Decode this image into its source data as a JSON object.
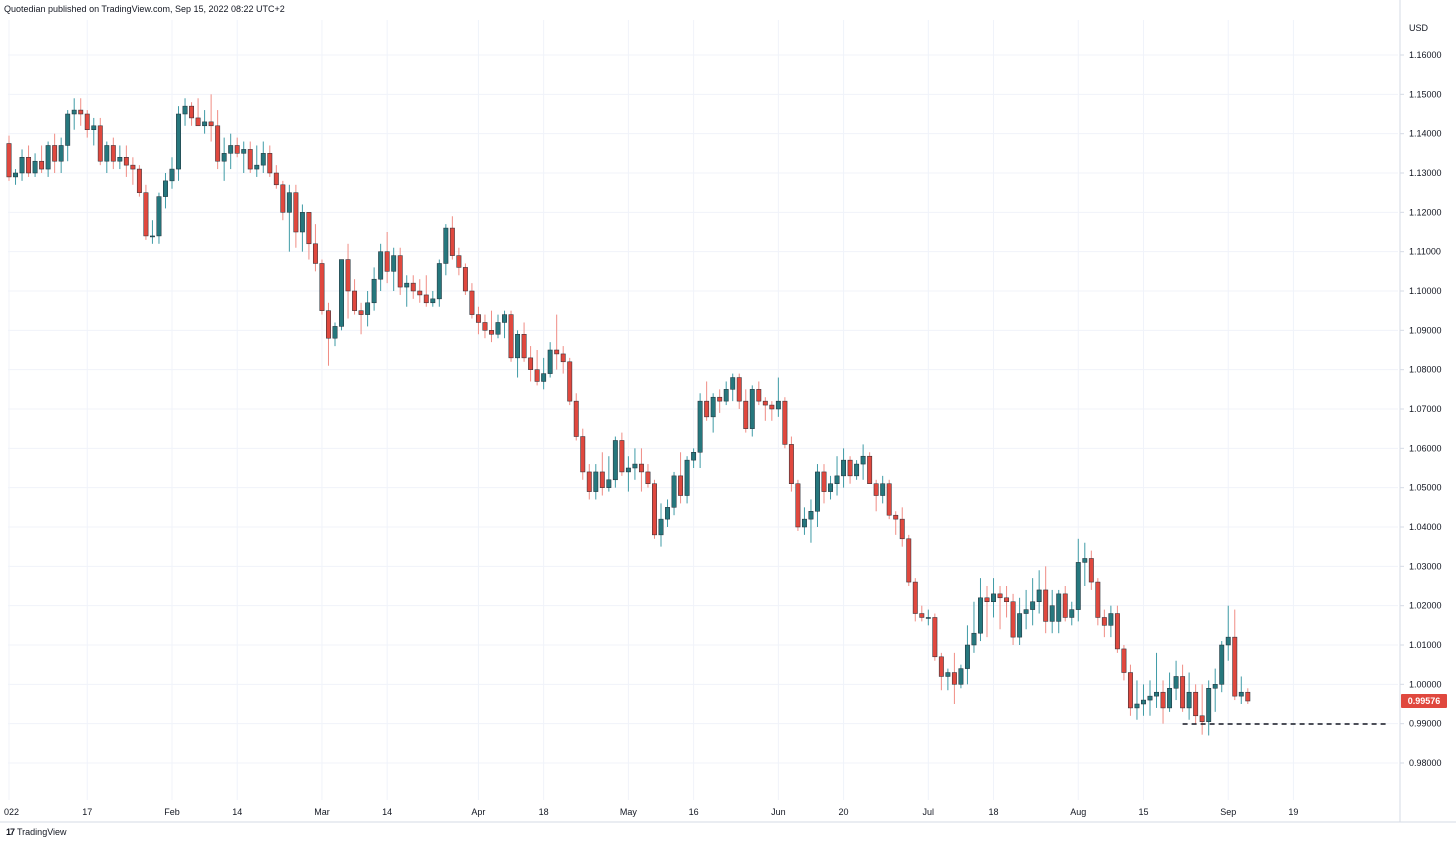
{
  "header": {
    "published_text": "Quotedian published on TradingView.com, Sep 15, 2022 08:22 UTC+2"
  },
  "brand": {
    "logo_glyph": "17",
    "name": "TradingView"
  },
  "colors": {
    "up": "#26777d",
    "down": "#e0483e",
    "up_wick": "#3f9ba6",
    "down_wick": "#f08c84",
    "price_tag_bg": "#e0483e",
    "grid": "#f0f3fa",
    "axis_line": "#d6dbe5",
    "support_line": "#131722"
  },
  "chart_data": {
    "type": "candlestick",
    "currency": "USD",
    "ylim": [
      0.97,
      1.165
    ],
    "y_ticks": [
      "1.16000",
      "1.15000",
      "1.14000",
      "1.13000",
      "1.12000",
      "1.11000",
      "1.10000",
      "1.09000",
      "1.08000",
      "1.07000",
      "1.06000",
      "1.05000",
      "1.04000",
      "1.03000",
      "1.02000",
      "1.01000",
      "1.00000",
      "0.99000",
      "0.98000"
    ],
    "x_tick_labels": [
      "022",
      "17",
      "Feb",
      "14",
      "Mar",
      "14",
      "Apr",
      "18",
      "May",
      "16",
      "Jun",
      "20",
      "Jul",
      "18",
      "Aug",
      "15",
      "Sep",
      "19"
    ],
    "x_tick_index": [
      0,
      12,
      25,
      35,
      48,
      58,
      72,
      82,
      95,
      105,
      118,
      128,
      141,
      151,
      164,
      174,
      187,
      197
    ],
    "last_price": 0.99576,
    "last_price_label": "0.99576",
    "support_level": 0.9899,
    "support_start_index": 180,
    "support_end_index": 205,
    "candles": [
      [
        1.1375,
        1.1395,
        1.128,
        1.129
      ],
      [
        1.129,
        1.131,
        1.127,
        1.13
      ],
      [
        1.13,
        1.136,
        1.128,
        1.134
      ],
      [
        1.134,
        1.137,
        1.129,
        1.13
      ],
      [
        1.13,
        1.135,
        1.129,
        1.133
      ],
      [
        1.133,
        1.137,
        1.13,
        1.131
      ],
      [
        1.131,
        1.138,
        1.129,
        1.137
      ],
      [
        1.137,
        1.14,
        1.13,
        1.133
      ],
      [
        1.133,
        1.139,
        1.13,
        1.137
      ],
      [
        1.137,
        1.146,
        1.133,
        1.145
      ],
      [
        1.145,
        1.149,
        1.141,
        1.146
      ],
      [
        1.146,
        1.149,
        1.142,
        1.145
      ],
      [
        1.145,
        1.146,
        1.139,
        1.141
      ],
      [
        1.141,
        1.144,
        1.137,
        1.142
      ],
      [
        1.142,
        1.144,
        1.132,
        1.133
      ],
      [
        1.133,
        1.138,
        1.13,
        1.137
      ],
      [
        1.137,
        1.139,
        1.131,
        1.133
      ],
      [
        1.133,
        1.137,
        1.131,
        1.134
      ],
      [
        1.134,
        1.137,
        1.129,
        1.132
      ],
      [
        1.132,
        1.134,
        1.127,
        1.131
      ],
      [
        1.131,
        1.132,
        1.124,
        1.125
      ],
      [
        1.125,
        1.127,
        1.113,
        1.114
      ],
      [
        1.114,
        1.118,
        1.112,
        1.114
      ],
      [
        1.114,
        1.125,
        1.112,
        1.124
      ],
      [
        1.124,
        1.13,
        1.121,
        1.128
      ],
      [
        1.128,
        1.134,
        1.126,
        1.131
      ],
      [
        1.131,
        1.147,
        1.128,
        1.145
      ],
      [
        1.145,
        1.149,
        1.142,
        1.147
      ],
      [
        1.147,
        1.148,
        1.142,
        1.144
      ],
      [
        1.144,
        1.149,
        1.142,
        1.142
      ],
      [
        1.142,
        1.146,
        1.14,
        1.143
      ],
      [
        1.143,
        1.15,
        1.138,
        1.142
      ],
      [
        1.142,
        1.146,
        1.131,
        1.133
      ],
      [
        1.133,
        1.139,
        1.128,
        1.135
      ],
      [
        1.135,
        1.14,
        1.131,
        1.137
      ],
      [
        1.137,
        1.139,
        1.134,
        1.135
      ],
      [
        1.135,
        1.138,
        1.13,
        1.136
      ],
      [
        1.136,
        1.138,
        1.13,
        1.131
      ],
      [
        1.131,
        1.137,
        1.129,
        1.132
      ],
      [
        1.132,
        1.138,
        1.13,
        1.135
      ],
      [
        1.135,
        1.137,
        1.129,
        1.13
      ],
      [
        1.13,
        1.132,
        1.126,
        1.127
      ],
      [
        1.127,
        1.128,
        1.118,
        1.12
      ],
      [
        1.12,
        1.127,
        1.11,
        1.125
      ],
      [
        1.125,
        1.127,
        1.111,
        1.115
      ],
      [
        1.115,
        1.122,
        1.11,
        1.12
      ],
      [
        1.12,
        1.12,
        1.108,
        1.112
      ],
      [
        1.112,
        1.117,
        1.105,
        1.107
      ],
      [
        1.107,
        1.108,
        1.094,
        1.095
      ],
      [
        1.095,
        1.097,
        1.081,
        1.088
      ],
      [
        1.088,
        1.092,
        1.086,
        1.091
      ],
      [
        1.091,
        1.108,
        1.09,
        1.108
      ],
      [
        1.108,
        1.112,
        1.093,
        1.1
      ],
      [
        1.1,
        1.103,
        1.094,
        1.095
      ],
      [
        1.095,
        1.097,
        1.089,
        1.094
      ],
      [
        1.094,
        1.1,
        1.091,
        1.097
      ],
      [
        1.097,
        1.106,
        1.095,
        1.103
      ],
      [
        1.103,
        1.112,
        1.1,
        1.11
      ],
      [
        1.11,
        1.115,
        1.102,
        1.105
      ],
      [
        1.105,
        1.111,
        1.1,
        1.109
      ],
      [
        1.109,
        1.111,
        1.099,
        1.101
      ],
      [
        1.101,
        1.104,
        1.096,
        1.102
      ],
      [
        1.102,
        1.104,
        1.098,
        1.1
      ],
      [
        1.1,
        1.103,
        1.097,
        1.099
      ],
      [
        1.099,
        1.104,
        1.096,
        1.097
      ],
      [
        1.097,
        1.1,
        1.096,
        1.098
      ],
      [
        1.098,
        1.108,
        1.096,
        1.107
      ],
      [
        1.107,
        1.117,
        1.104,
        1.116
      ],
      [
        1.116,
        1.119,
        1.108,
        1.109
      ],
      [
        1.109,
        1.111,
        1.104,
        1.106
      ],
      [
        1.106,
        1.107,
        1.099,
        1.1
      ],
      [
        1.1,
        1.102,
        1.093,
        1.094
      ],
      [
        1.094,
        1.096,
        1.089,
        1.092
      ],
      [
        1.092,
        1.094,
        1.088,
        1.09
      ],
      [
        1.09,
        1.095,
        1.087,
        1.089
      ],
      [
        1.089,
        1.094,
        1.088,
        1.092
      ],
      [
        1.092,
        1.095,
        1.088,
        1.094
      ],
      [
        1.094,
        1.095,
        1.082,
        1.083
      ],
      [
        1.083,
        1.09,
        1.078,
        1.089
      ],
      [
        1.089,
        1.092,
        1.082,
        1.083
      ],
      [
        1.083,
        1.086,
        1.077,
        1.08
      ],
      [
        1.08,
        1.085,
        1.076,
        1.077
      ],
      [
        1.077,
        1.083,
        1.075,
        1.079
      ],
      [
        1.079,
        1.087,
        1.078,
        1.085
      ],
      [
        1.085,
        1.094,
        1.08,
        1.084
      ],
      [
        1.084,
        1.086,
        1.079,
        1.082
      ],
      [
        1.082,
        1.083,
        1.071,
        1.072
      ],
      [
        1.072,
        1.074,
        1.062,
        1.063
      ],
      [
        1.063,
        1.065,
        1.052,
        1.054
      ],
      [
        1.054,
        1.056,
        1.047,
        1.049
      ],
      [
        1.049,
        1.056,
        1.047,
        1.054
      ],
      [
        1.054,
        1.059,
        1.048,
        1.05
      ],
      [
        1.05,
        1.058,
        1.049,
        1.052
      ],
      [
        1.052,
        1.063,
        1.05,
        1.062
      ],
      [
        1.062,
        1.064,
        1.053,
        1.054
      ],
      [
        1.054,
        1.058,
        1.049,
        1.055
      ],
      [
        1.055,
        1.06,
        1.052,
        1.056
      ],
      [
        1.056,
        1.06,
        1.049,
        1.054
      ],
      [
        1.054,
        1.056,
        1.05,
        1.051
      ],
      [
        1.051,
        1.052,
        1.037,
        1.038
      ],
      [
        1.038,
        1.046,
        1.035,
        1.042
      ],
      [
        1.042,
        1.047,
        1.04,
        1.045
      ],
      [
        1.045,
        1.054,
        1.043,
        1.053
      ],
      [
        1.053,
        1.059,
        1.046,
        1.048
      ],
      [
        1.048,
        1.058,
        1.046,
        1.057
      ],
      [
        1.057,
        1.06,
        1.055,
        1.059
      ],
      [
        1.059,
        1.074,
        1.055,
        1.072
      ],
      [
        1.072,
        1.077,
        1.067,
        1.068
      ],
      [
        1.068,
        1.074,
        1.064,
        1.073
      ],
      [
        1.073,
        1.075,
        1.069,
        1.072
      ],
      [
        1.072,
        1.077,
        1.071,
        1.075
      ],
      [
        1.075,
        1.079,
        1.072,
        1.078
      ],
      [
        1.078,
        1.079,
        1.07,
        1.072
      ],
      [
        1.072,
        1.075,
        1.064,
        1.065
      ],
      [
        1.065,
        1.076,
        1.063,
        1.075
      ],
      [
        1.075,
        1.077,
        1.071,
        1.072
      ],
      [
        1.072,
        1.073,
        1.067,
        1.071
      ],
      [
        1.071,
        1.072,
        1.067,
        1.07
      ],
      [
        1.07,
        1.078,
        1.068,
        1.072
      ],
      [
        1.072,
        1.073,
        1.06,
        1.061
      ],
      [
        1.061,
        1.063,
        1.049,
        1.051
      ],
      [
        1.051,
        1.052,
        1.039,
        1.04
      ],
      [
        1.04,
        1.045,
        1.038,
        1.042
      ],
      [
        1.042,
        1.047,
        1.036,
        1.044
      ],
      [
        1.044,
        1.056,
        1.04,
        1.054
      ],
      [
        1.054,
        1.056,
        1.046,
        1.049
      ],
      [
        1.049,
        1.053,
        1.047,
        1.051
      ],
      [
        1.051,
        1.058,
        1.048,
        1.053
      ],
      [
        1.053,
        1.06,
        1.05,
        1.057
      ],
      [
        1.057,
        1.058,
        1.051,
        1.053
      ],
      [
        1.053,
        1.057,
        1.052,
        1.056
      ],
      [
        1.056,
        1.061,
        1.052,
        1.058
      ],
      [
        1.058,
        1.059,
        1.051,
        1.051
      ],
      [
        1.051,
        1.052,
        1.044,
        1.048
      ],
      [
        1.048,
        1.053,
        1.046,
        1.051
      ],
      [
        1.051,
        1.052,
        1.042,
        1.043
      ],
      [
        1.043,
        1.044,
        1.038,
        1.042
      ],
      [
        1.042,
        1.045,
        1.035,
        1.037
      ],
      [
        1.037,
        1.038,
        1.025,
        1.026
      ],
      [
        1.026,
        1.027,
        1.016,
        1.018
      ],
      [
        1.018,
        1.02,
        1.016,
        1.017
      ],
      [
        1.017,
        1.019,
        1.015,
        1.017
      ],
      [
        1.017,
        1.018,
        1.006,
        1.007
      ],
      [
        1.007,
        1.008,
        0.9985,
        1.002
      ],
      [
        1.002,
        1.004,
        0.9985,
        1.003
      ],
      [
        1.003,
        1.008,
        0.995,
        1.0
      ],
      [
        1.0,
        1.005,
        0.999,
        1.004
      ],
      [
        1.004,
        1.015,
        1.0,
        1.01
      ],
      [
        1.01,
        1.021,
        1.008,
        1.013
      ],
      [
        1.013,
        1.027,
        1.011,
        1.022
      ],
      [
        1.022,
        1.025,
        1.012,
        1.021
      ],
      [
        1.021,
        1.027,
        1.017,
        1.023
      ],
      [
        1.023,
        1.025,
        1.014,
        1.022
      ],
      [
        1.022,
        1.025,
        1.017,
        1.021
      ],
      [
        1.021,
        1.023,
        1.01,
        1.012
      ],
      [
        1.012,
        1.022,
        1.01,
        1.018
      ],
      [
        1.018,
        1.024,
        1.014,
        1.019
      ],
      [
        1.019,
        1.027,
        1.015,
        1.021
      ],
      [
        1.021,
        1.029,
        1.018,
        1.024
      ],
      [
        1.024,
        1.03,
        1.013,
        1.016
      ],
      [
        1.016,
        1.024,
        1.013,
        1.02
      ],
      [
        1.016,
        1.024,
        1.013,
        1.023
      ],
      [
        1.023,
        1.025,
        1.016,
        1.017
      ],
      [
        1.017,
        1.021,
        1.015,
        1.019
      ],
      [
        1.019,
        1.037,
        1.016,
        1.031
      ],
      [
        1.031,
        1.036,
        1.025,
        1.032
      ],
      [
        1.032,
        1.034,
        1.024,
        1.026
      ],
      [
        1.026,
        1.027,
        1.015,
        1.017
      ],
      [
        1.017,
        1.019,
        1.012,
        1.015
      ],
      [
        1.015,
        1.02,
        1.012,
        1.018
      ],
      [
        1.018,
        1.02,
        1.008,
        1.009
      ],
      [
        1.009,
        1.01,
        1.001,
        1.003
      ],
      [
        1.003,
        1.005,
        0.992,
        0.994
      ],
      [
        0.994,
        1.001,
        0.991,
        0.995
      ],
      [
        0.995,
        1.0,
        0.992,
        0.996
      ],
      [
        0.996,
        1.001,
        0.992,
        0.997
      ],
      [
        0.997,
        1.008,
        0.994,
        0.998
      ],
      [
        0.998,
        1.001,
        0.99,
        0.994
      ],
      [
        0.994,
        1.003,
        0.993,
        0.999
      ],
      [
        0.999,
        1.006,
        0.996,
        1.002
      ],
      [
        1.002,
        1.005,
        0.993,
        0.994
      ],
      [
        0.994,
        1.003,
        0.991,
        0.998
      ],
      [
        0.998,
        1.0,
        0.99,
        0.992
      ],
      [
        0.992,
        1.0,
        0.9872,
        0.9905
      ],
      [
        0.9905,
        1.001,
        0.987,
        0.999
      ],
      [
        0.999,
        1.004,
        0.993,
        1.0
      ],
      [
        1.0,
        1.011,
        0.998,
        1.01
      ],
      [
        1.01,
        1.02,
        1.006,
        1.012
      ],
      [
        1.012,
        1.019,
        0.996,
        0.997
      ],
      [
        0.997,
        1.002,
        0.995,
        0.998
      ],
      [
        0.998,
        0.999,
        0.995,
        0.99576
      ]
    ]
  }
}
